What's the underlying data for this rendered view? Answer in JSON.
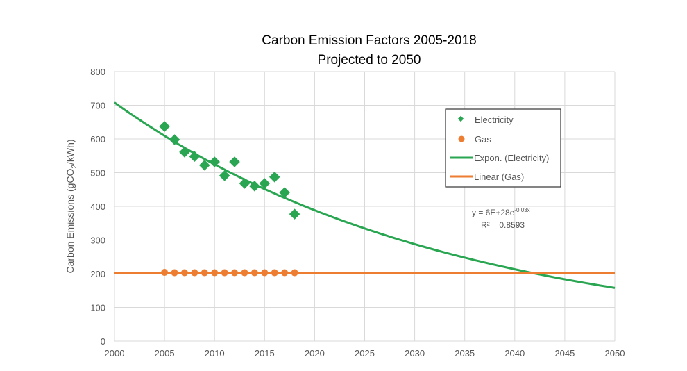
{
  "chart_data": {
    "type": "scatter",
    "title": [
      "Carbon Emission Factors 2005-2018",
      "Projected to 2050"
    ],
    "xlabel": "",
    "ylabel": "Carbon Emissions (gCO2/kWh)",
    "ylabel_parts": {
      "pre": "Carbon Emissions (gCO",
      "sub": "2",
      "post": "/kWh)"
    },
    "xlim": [
      2000,
      2050
    ],
    "ylim": [
      0,
      800
    ],
    "xticks": [
      2000,
      2005,
      2010,
      2015,
      2020,
      2025,
      2030,
      2035,
      2040,
      2045,
      2050
    ],
    "yticks": [
      0,
      100,
      200,
      300,
      400,
      500,
      600,
      700,
      800
    ],
    "grid": true,
    "legend_placement": "top-right",
    "series": [
      {
        "name": "Electricity",
        "marker": "diamond",
        "color": "#2aa652",
        "x": [
          2005,
          2006,
          2007,
          2008,
          2009,
          2010,
          2011,
          2012,
          2013,
          2014,
          2015,
          2016,
          2017,
          2018
        ],
        "y": [
          637,
          598,
          561,
          548,
          522,
          532,
          491,
          532,
          468,
          460,
          468,
          487,
          441,
          377
        ]
      },
      {
        "name": "Gas",
        "marker": "circle",
        "color": "#ed7d31",
        "x": [
          2005,
          2006,
          2007,
          2008,
          2009,
          2010,
          2011,
          2012,
          2013,
          2014,
          2015,
          2016,
          2017,
          2018
        ],
        "y": [
          204,
          203,
          203,
          203,
          203,
          203,
          203,
          203,
          203,
          203,
          203,
          203,
          203,
          203
        ]
      }
    ],
    "trendlines": [
      {
        "name": "Expon. (Electricity)",
        "type": "exponential",
        "color": "#2aa652",
        "value_2000": 708,
        "rate": -0.03
      },
      {
        "name": "Linear (Gas)",
        "type": "linear",
        "color": "#ed7d31",
        "value_2000": 203,
        "slope": 0
      }
    ],
    "annotation": {
      "equation_main": "y = 6E+28e",
      "equation_exp": "-0.03x",
      "r2": "R² = 0.8593"
    }
  }
}
